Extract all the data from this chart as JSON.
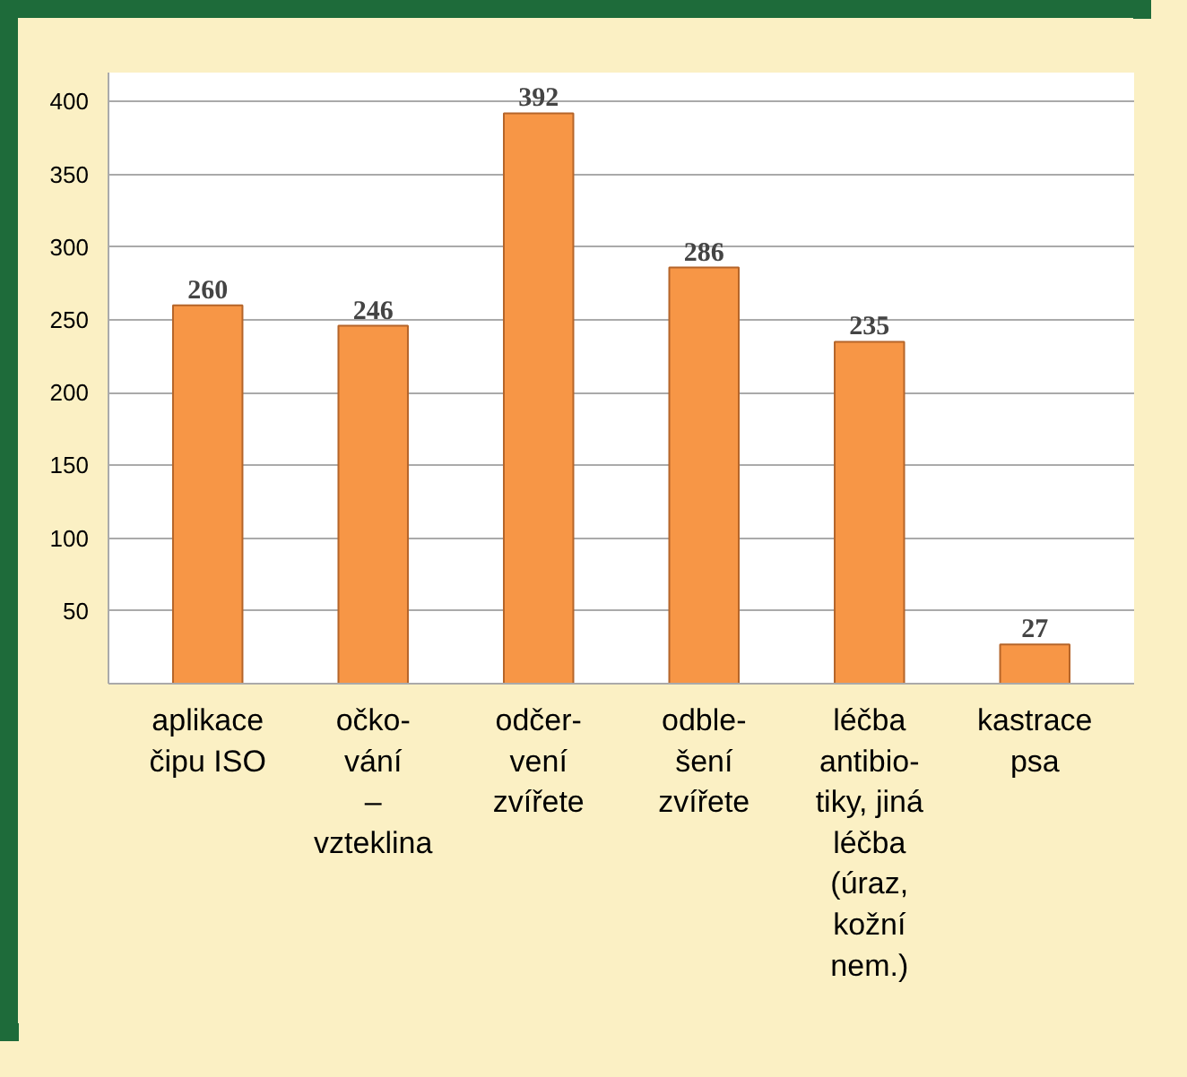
{
  "chart_data": {
    "type": "bar",
    "categories": [
      "aplikace\nčipu ISO",
      "očko-\nvání\n–\nvzteklina",
      "odčer-\nvení\nzvířete",
      "odble-\nšení\nzvířete",
      "léčba\nantibio-\ntiky, jiná\nléčba\n(úraz,\nkožní\nnem.)",
      "kastrace\npsa"
    ],
    "values": [
      260,
      246,
      392,
      286,
      235,
      27
    ],
    "color": "#f79646",
    "ylim": [
      0,
      420
    ],
    "yticks": [
      50,
      100,
      150,
      200,
      250,
      300,
      350,
      400
    ],
    "grid": "y",
    "data_labels": true
  }
}
